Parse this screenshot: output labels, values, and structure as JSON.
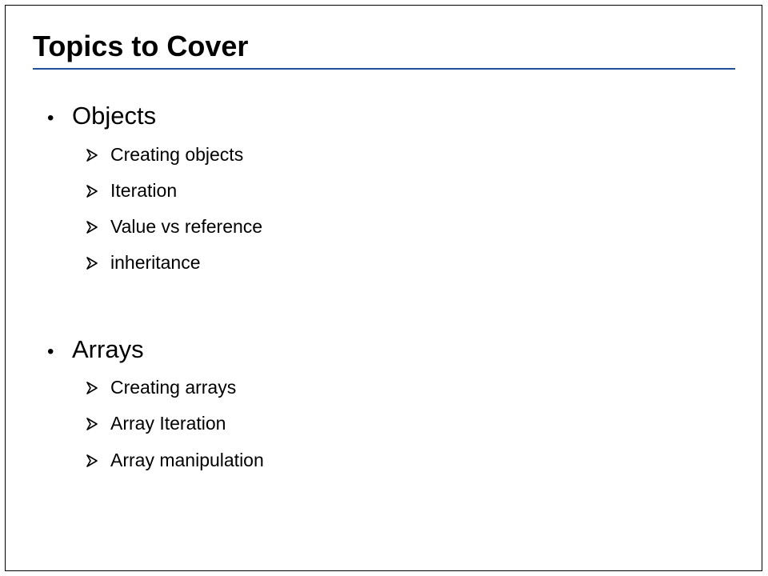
{
  "slide": {
    "title": "Topics to Cover",
    "accent_color": "#1f4e9a",
    "bullet_icon": "bullet-dot-icon",
    "sub_bullet_icon": "arrow-right-icon",
    "sections": [
      {
        "heading": "Objects",
        "items": [
          "Creating objects",
          "Iteration",
          "Value vs reference",
          "inheritance"
        ]
      },
      {
        "heading": "Arrays",
        "items": [
          "Creating arrays",
          "Array Iteration",
          "Array manipulation"
        ]
      }
    ]
  }
}
